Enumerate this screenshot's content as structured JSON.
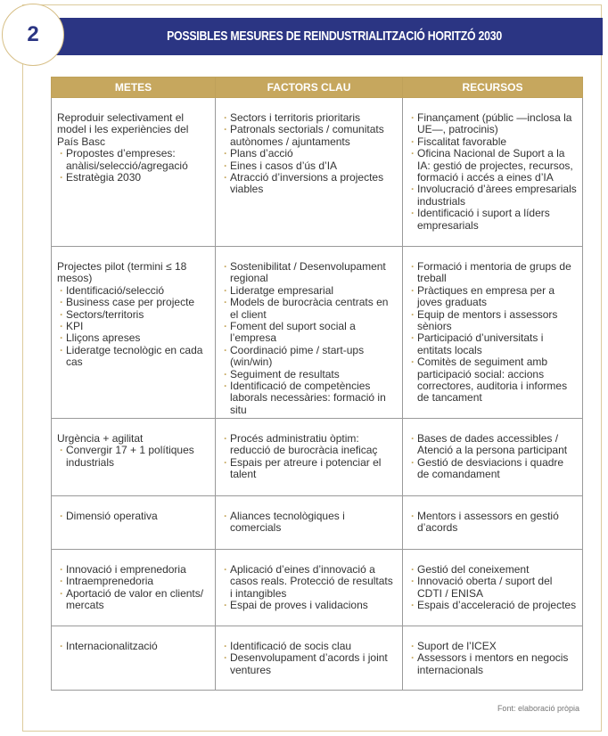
{
  "header": {
    "number": "2",
    "title": "POSSIBLES MESURES DE REINDUSTRIALITZACIÓ HORITZÓ 2030"
  },
  "table": {
    "headers": [
      "METES",
      "FACTORS CLAU",
      "RECURSOS"
    ],
    "rows": [
      [
        {
          "lead": "Reproduir selectivament el model i les experiències del País Basc",
          "items": [
            "Propostes d’empreses: anàlisi/selecció/agregació",
            "Estratègia 2030"
          ]
        },
        {
          "items": [
            "Sectors i territoris prioritaris",
            "Patronals sectorials / comunitats autònomes / ajuntaments",
            "Plans d’acció",
            "Eines i casos d’ús d’IA",
            "Atracció d’inversions a projectes viables"
          ]
        },
        {
          "items": [
            "Finançament (públic —inclosa la UE—, patrocinis)",
            "Fiscalitat favorable",
            "Oficina Nacional de Suport a la IA: gestió de projectes, recursos, formació i accés a eines d’IA",
            "Involucració d’àrees empresarials industrials",
            "Identificació i suport a líders empresarials"
          ]
        }
      ],
      [
        {
          "lead": "Projectes pilot (termini ≤ 18 mesos)",
          "items": [
            "Identificació/selecció",
            "Business case per projecte",
            "Sectors/territoris",
            "KPI",
            "Lliçons apreses",
            "Lideratge tecnològic en cada cas"
          ]
        },
        {
          "items": [
            "Sostenibilitat / Desenvolupament regional",
            "Lideratge empresarial",
            "Models de burocràcia centrats en el client",
            "Foment del suport social a l’empresa",
            "Coordinació pime / start-ups (win/win)",
            "Seguiment de resultats",
            "Identificació de competències laborals necessàries: formació in situ"
          ]
        },
        {
          "items": [
            "Formació i mentoria de grups de treball",
            "Pràctiques en empresa per a joves graduats",
            "Equip de mentors i assessors sèniors",
            "Participació d’universitats i entitats locals",
            "Comitès de seguiment amb participació social: accions correctores, auditoria i informes de tancament"
          ]
        }
      ],
      [
        {
          "lead": "Urgència + agilitat",
          "items": [
            "Convergir 17 + 1 polítiques industrials"
          ]
        },
        {
          "items": [
            "Procés administratiu òptim: reducció de burocràcia ineficaç",
            "Espais per atreure i potenciar el talent"
          ]
        },
        {
          "items": [
            "Bases de dades accessibles / Atenció a la persona participant",
            "Gestió de desviacions i quadre de comandament"
          ]
        }
      ],
      [
        {
          "items": [
            "Dimensió operativa"
          ]
        },
        {
          "items": [
            "Aliances tecnològiques i comercials"
          ]
        },
        {
          "items": [
            "Mentors i assessors en gestió d’acords"
          ]
        }
      ],
      [
        {
          "items": [
            "Innovació i emprenedoria",
            "Intraemprenedoria",
            "Aportació de valor en clients/ mercats"
          ]
        },
        {
          "items": [
            "Aplicació d’eines d’innovació a casos reals. Protecció de resultats i intangibles",
            "Espai de proves i validacions"
          ]
        },
        {
          "items": [
            "Gestió del coneixement",
            "Innovació oberta / suport del CDTI / ENISA",
            "Espais d’acceleració de projectes"
          ]
        }
      ],
      [
        {
          "items": [
            "Internacionalització"
          ]
        },
        {
          "items": [
            "Identificació de socis clau",
            "Desenvolupament d’acords i joint ventures"
          ]
        },
        {
          "items": [
            "Suport de l’ICEX",
            "Assessors i mentors en negocis internacionals"
          ]
        }
      ]
    ]
  },
  "footer": {
    "source": "Font: elaboració pròpia"
  }
}
